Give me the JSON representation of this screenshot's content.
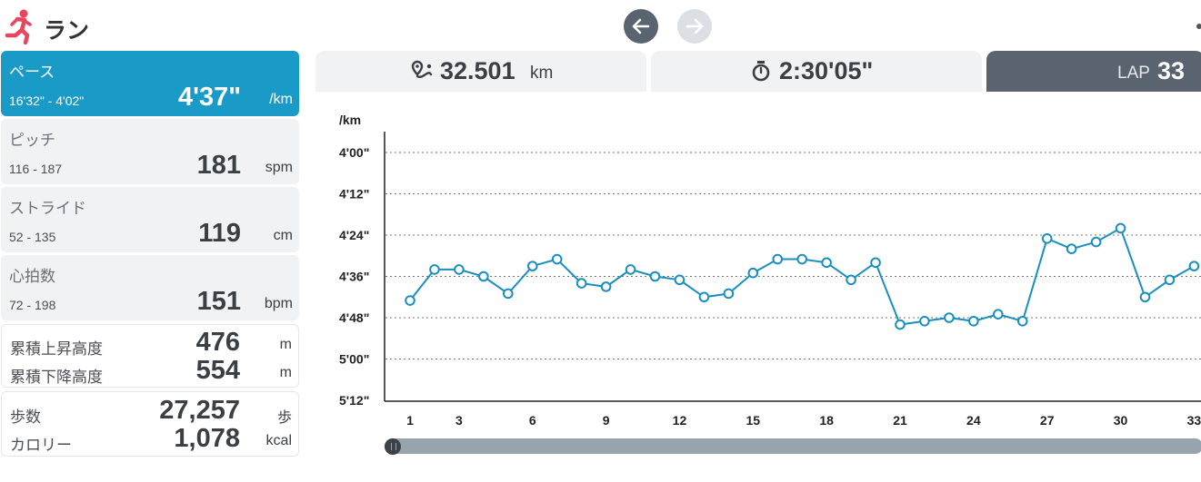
{
  "header": {
    "title": "ラン",
    "icon": "running-person-icon"
  },
  "nav": {
    "prev_icon": "arrow-left-icon",
    "next_icon": "arrow-right-icon"
  },
  "metrics": {
    "pace": {
      "label": "ペース",
      "range": "16'32\" - 4'02\"",
      "value": "4'37\"",
      "unit": "/km"
    },
    "pitch": {
      "label": "ピッチ",
      "range": "116 - 187",
      "value": "181",
      "unit": "spm"
    },
    "stride": {
      "label": "ストライド",
      "range": "52 - 135",
      "value": "119",
      "unit": "cm"
    },
    "heart_rate": {
      "label": "心拍数",
      "range": "72 - 198",
      "value": "151",
      "unit": "bpm"
    }
  },
  "elevation": {
    "ascent": {
      "label": "累積上昇高度",
      "value": "476",
      "unit": "m"
    },
    "descent": {
      "label": "累積下降高度",
      "value": "554",
      "unit": "m"
    }
  },
  "steps_calories": {
    "steps": {
      "label": "歩数",
      "value": "27,257",
      "unit": "歩"
    },
    "calories": {
      "label": "カロリー",
      "value": "1,078",
      "unit": "kcal"
    }
  },
  "summary": {
    "distance": {
      "value": "32.501",
      "unit": "km",
      "icon": "route-pin-icon"
    },
    "time": {
      "value": "2:30'05\"",
      "icon": "stopwatch-icon"
    },
    "lap": {
      "label": "LAP",
      "value": "33"
    }
  },
  "colors": {
    "accent": "#1a9bc7",
    "dark": "#5a6470",
    "card": "#f1f2f4",
    "line": "#1a8fbf"
  },
  "chart_data": {
    "type": "line",
    "ylabel": "/km",
    "y_ticks": [
      "4'00\"",
      "4'12\"",
      "4'24\"",
      "4'36\"",
      "4'48\"",
      "5'00\"",
      "5'12\""
    ],
    "y_tick_seconds": [
      240,
      252,
      264,
      276,
      288,
      300,
      312
    ],
    "ylim_seconds": [
      240,
      312
    ],
    "y_inverted": true,
    "grid": true,
    "x_ticks": [
      1,
      3,
      6,
      9,
      12,
      15,
      18,
      21,
      24,
      27,
      30,
      33
    ],
    "x": [
      1,
      2,
      3,
      4,
      5,
      6,
      7,
      8,
      9,
      10,
      11,
      12,
      13,
      14,
      15,
      16,
      17,
      18,
      19,
      20,
      21,
      22,
      23,
      24,
      25,
      26,
      27,
      28,
      29,
      30,
      31,
      32,
      33
    ],
    "values_seconds": [
      283,
      274,
      274,
      276,
      281,
      273,
      271,
      278,
      279,
      274,
      276,
      277,
      282,
      281,
      275,
      271,
      271,
      272,
      277,
      272,
      290,
      289,
      288,
      289,
      287,
      289,
      265,
      268,
      266,
      262,
      282,
      277,
      273
    ]
  }
}
